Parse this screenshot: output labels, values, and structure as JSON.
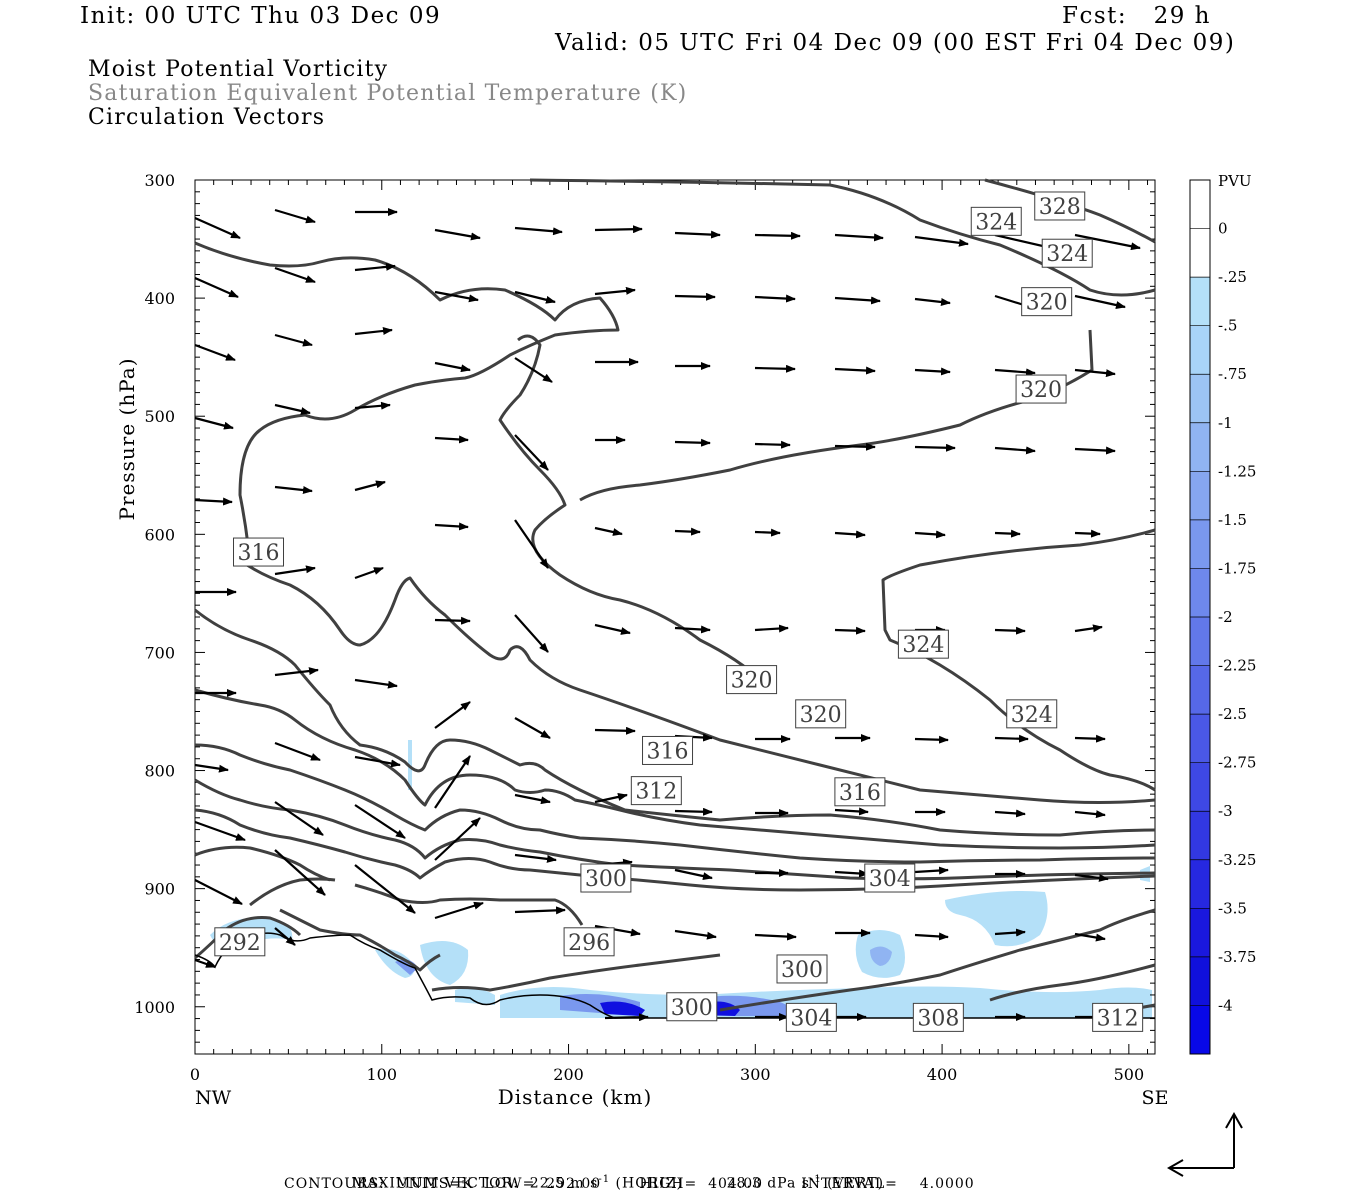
{
  "header": {
    "init": "Init: 00 UTC Thu 03 Dec 09",
    "fcst": "Fcst:   29 h",
    "valid": "Valid: 05 UTC Fri 04 Dec 09 (00 EST Fri 04 Dec 09)"
  },
  "fields": {
    "line1": "Moist Potential Vorticity",
    "line2": "Saturation Equivalent Potential Temperature (K)",
    "line3": "Circulation Vectors"
  },
  "footer": {
    "max_vector_label": "MAXIMUM VECTOR:",
    "horiz": "22.5 m s",
    "horiz_exp": "-1",
    "horiz_tag": "(HORIZ)",
    "vert": "28.3 dPa s",
    "vert_exp": "-1",
    "vert_tag": "(VERT)",
    "contours": "CONTOURS:  UNITS=K  LOW=  292.00       HIGH=  404.00       INTERVAL=    4.0000"
  },
  "colors": {
    "contour": "#404040",
    "mpv_light": "#b4e0f8",
    "mpv_mid": "#7aa0f0",
    "mpv_dark": "#1010e0"
  },
  "chart_data": {
    "type": "cross-section",
    "xlabel": "Distance (km)",
    "ylabel": "Pressure (hPa)",
    "xlim": [
      0,
      514
    ],
    "ylim": [
      1040,
      300
    ],
    "x_ticks": [
      0,
      100,
      200,
      300,
      400,
      500
    ],
    "y_ticks": [
      300,
      400,
      500,
      600,
      700,
      800,
      900,
      1000
    ],
    "x_end_labels": {
      "left": "NW",
      "right": "SE"
    },
    "colorbar": {
      "unit": "PVU",
      "levels": [
        "0",
        "-.25",
        "-.5",
        "-.75",
        "-1",
        "-1.25",
        "-1.5",
        "-1.75",
        "-2",
        "-2.25",
        "-2.5",
        "-2.75",
        "-3",
        "-3.25",
        "-3.5",
        "-3.75",
        "-4"
      ],
      "colors": [
        "#ffffff",
        "#ffffff",
        "#b4e0f8",
        "#a8d4f8",
        "#9cc4f4",
        "#90b4f2",
        "#86a6f0",
        "#7a98ee",
        "#6e88ec",
        "#6278ea",
        "#5668e8",
        "#4a58e6",
        "#3e48e4",
        "#3238e2",
        "#2628e0",
        "#1a18de",
        "#1010dc",
        "#0808e8"
      ]
    },
    "contour_labels": [
      {
        "text": "328",
        "x": 463,
        "p": 322
      },
      {
        "text": "324",
        "x": 429,
        "p": 335
      },
      {
        "text": "324",
        "x": 467,
        "p": 362
      },
      {
        "text": "320",
        "x": 456,
        "p": 403
      },
      {
        "text": "320",
        "x": 453,
        "p": 477
      },
      {
        "text": "316",
        "x": 34,
        "p": 615
      },
      {
        "text": "324",
        "x": 390,
        "p": 693
      },
      {
        "text": "320",
        "x": 298,
        "p": 723
      },
      {
        "text": "320",
        "x": 335,
        "p": 752
      },
      {
        "text": "324",
        "x": 448,
        "p": 752
      },
      {
        "text": "316",
        "x": 253,
        "p": 783
      },
      {
        "text": "312",
        "x": 247,
        "p": 817
      },
      {
        "text": "316",
        "x": 356,
        "p": 818
      },
      {
        "text": "300",
        "x": 220,
        "p": 891
      },
      {
        "text": "304",
        "x": 372,
        "p": 891
      },
      {
        "text": "292",
        "x": 24,
        "p": 945
      },
      {
        "text": "296",
        "x": 211,
        "p": 945
      },
      {
        "text": "300",
        "x": 325,
        "p": 968
      },
      {
        "text": "300",
        "x": 266,
        "p": 1000
      },
      {
        "text": "304",
        "x": 330,
        "p": 1009
      },
      {
        "text": "308",
        "x": 398,
        "p": 1009
      },
      {
        "text": "312",
        "x": 494,
        "p": 1009
      }
    ],
    "contour_levels_k": [
      292,
      296,
      300,
      304,
      308,
      312,
      316,
      320,
      324,
      328
    ]
  }
}
